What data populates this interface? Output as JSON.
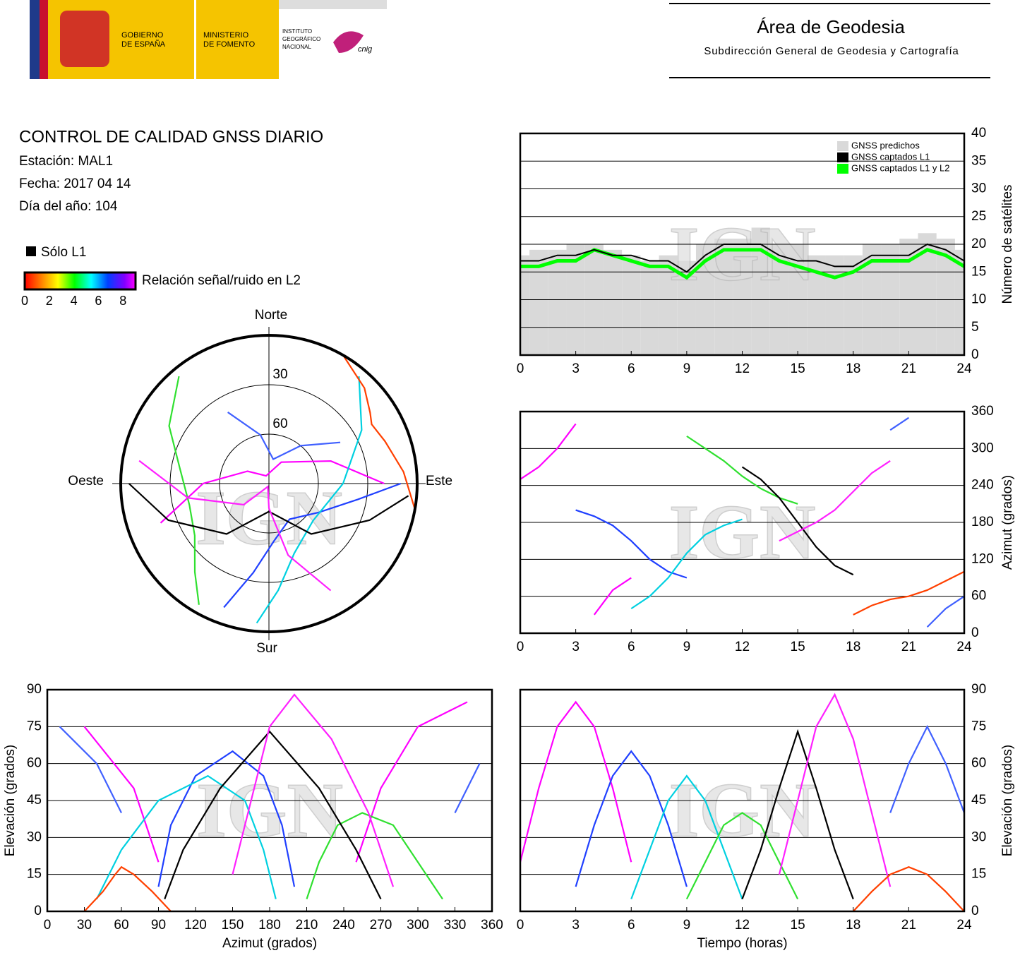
{
  "header": {
    "gov_line1": "GOBIERNO",
    "gov_line2": "DE ESPAÑA",
    "min_line1": "MINISTERIO",
    "min_line2": "DE FOMENTO",
    "ign_line1": "INSTITUTO",
    "ign_line2": "GEOGRÁFICO",
    "ign_line3": "NACIONAL",
    "cnig": "cnig",
    "area_title": "Área de Geodesia",
    "area_subtitle": "Subdirección General de Geodesia y Cartografía"
  },
  "report": {
    "title": "CONTROL DE CALIDAD GNSS DIARIO",
    "station": "Estación: MAL1",
    "date": "Fecha: 2017 04 14",
    "doy": "Día del año: 104"
  },
  "legend": {
    "l1_only": "Sólo L1",
    "snr_label": "Relación señal/ruido en L2",
    "snr_ticks": [
      0,
      2,
      4,
      6,
      8
    ]
  },
  "watermark": "IGN",
  "satellite_passes": [
    {
      "color": "#ff00ff",
      "time": [
        0,
        1,
        2,
        3,
        4,
        5,
        6
      ],
      "azimuth": [
        250,
        270,
        300,
        340,
        30,
        70,
        90
      ],
      "elevation": [
        20,
        50,
        75,
        85,
        75,
        50,
        20
      ]
    },
    {
      "color": "#2040ff",
      "time": [
        3,
        4,
        5,
        6,
        7,
        8,
        9
      ],
      "azimuth": [
        200,
        190,
        175,
        150,
        120,
        100,
        90
      ],
      "elevation": [
        10,
        35,
        55,
        65,
        55,
        35,
        10
      ]
    },
    {
      "color": "#00d0e0",
      "time": [
        6,
        7,
        8,
        9,
        10,
        11,
        12
      ],
      "azimuth": [
        40,
        60,
        90,
        130,
        160,
        175,
        185
      ],
      "elevation": [
        5,
        25,
        45,
        55,
        45,
        25,
        5
      ]
    },
    {
      "color": "#30e030",
      "time": [
        9,
        10,
        11,
        12,
        13,
        14,
        15
      ],
      "azimuth": [
        320,
        300,
        280,
        255,
        235,
        220,
        210
      ],
      "elevation": [
        5,
        20,
        35,
        40,
        35,
        20,
        5
      ]
    },
    {
      "color": "#000000",
      "time": [
        12,
        13,
        14,
        15,
        16,
        17,
        18
      ],
      "azimuth": [
        270,
        250,
        220,
        180,
        140,
        110,
        95
      ],
      "elevation": [
        5,
        25,
        50,
        73,
        50,
        25,
        5
      ]
    },
    {
      "color": "#ff20ff",
      "time": [
        14,
        15,
        16,
        17,
        18,
        19,
        20
      ],
      "azimuth": [
        150,
        165,
        180,
        200,
        230,
        260,
        280
      ],
      "elevation": [
        15,
        45,
        75,
        88,
        70,
        40,
        10
      ]
    },
    {
      "color": "#ff4000",
      "time": [
        18,
        19,
        20,
        21,
        22,
        23,
        24
      ],
      "azimuth": [
        30,
        45,
        55,
        60,
        70,
        85,
        100
      ],
      "elevation": [
        0,
        8,
        15,
        18,
        15,
        8,
        0
      ]
    },
    {
      "color": "#4060ff",
      "time": [
        20,
        21,
        22,
        23,
        24
      ],
      "azimuth": [
        330,
        350,
        10,
        40,
        60
      ],
      "elevation": [
        40,
        60,
        75,
        60,
        40
      ]
    }
  ],
  "chart_data": [
    {
      "type": "skyplot",
      "direction_labels": {
        "north": "Norte",
        "south": "Sur",
        "east": "Este",
        "west": "Oeste"
      },
      "rlim": [
        0,
        90
      ],
      "rticks": [
        30,
        60
      ]
    },
    {
      "type": "satellite-count",
      "ylabel": "Número de satélites",
      "x": [
        0,
        1,
        2,
        3,
        4,
        5,
        6,
        7,
        8,
        9,
        10,
        11,
        12,
        13,
        14,
        15,
        16,
        17,
        18,
        19,
        20,
        21,
        22,
        23,
        24
      ],
      "series": [
        {
          "name": "GNSS predichos",
          "color": "#d9d9d9",
          "type": "bar",
          "values": [
            18,
            19,
            19,
            20,
            20,
            19,
            18,
            17,
            18,
            17,
            20,
            21,
            21,
            23,
            20,
            20,
            18,
            18,
            18,
            20,
            20,
            21,
            22,
            21,
            19
          ]
        },
        {
          "name": "GNSS captados L1",
          "color": "#000000",
          "type": "line",
          "values": [
            17,
            17,
            18,
            18,
            19,
            18,
            18,
            17,
            17,
            15,
            18,
            20,
            20,
            20,
            18,
            17,
            17,
            16,
            16,
            18,
            18,
            18,
            20,
            19,
            17
          ]
        },
        {
          "name": "GNSS captados L1 y L2",
          "color": "#00ff00",
          "type": "line",
          "values": [
            16,
            16,
            17,
            17,
            19,
            18,
            17,
            16,
            16,
            14,
            17,
            19,
            19,
            19,
            17,
            16,
            15,
            14,
            15,
            17,
            17,
            17,
            19,
            18,
            16
          ]
        }
      ],
      "xlim": [
        0,
        24
      ],
      "xticks": [
        0,
        3,
        6,
        9,
        12,
        15,
        18,
        21,
        24
      ],
      "ylim": [
        0,
        40
      ],
      "yticks": [
        0,
        5,
        10,
        15,
        20,
        25,
        30,
        35,
        40
      ],
      "grid": true,
      "legend": "upper right"
    },
    {
      "type": "azimuth-time",
      "ylabel": "Azimut (grados)",
      "xlim": [
        0,
        24
      ],
      "xticks": [
        0,
        3,
        6,
        9,
        12,
        15,
        18,
        21,
        24
      ],
      "ylim": [
        0,
        360
      ],
      "yticks": [
        0,
        60,
        120,
        180,
        240,
        300,
        360
      ],
      "grid": true
    },
    {
      "type": "elevation-azimuth",
      "xlabel": "Azimut (grados)",
      "ylabel": "Elevación (grados)",
      "xlim": [
        0,
        360
      ],
      "xticks": [
        0,
        30,
        60,
        90,
        120,
        150,
        180,
        210,
        240,
        270,
        300,
        330,
        360
      ],
      "ylim": [
        0,
        90
      ],
      "yticks": [
        0,
        15,
        30,
        45,
        60,
        75,
        90
      ],
      "grid": true
    },
    {
      "type": "elevation-time",
      "xlabel": "Tiempo (horas)",
      "ylabel": "Elevación (grados)",
      "xlim": [
        0,
        24
      ],
      "xticks": [
        0,
        3,
        6,
        9,
        12,
        15,
        18,
        21,
        24
      ],
      "ylim": [
        0,
        90
      ],
      "yticks": [
        0,
        15,
        30,
        45,
        60,
        75,
        90
      ],
      "grid": true
    }
  ]
}
